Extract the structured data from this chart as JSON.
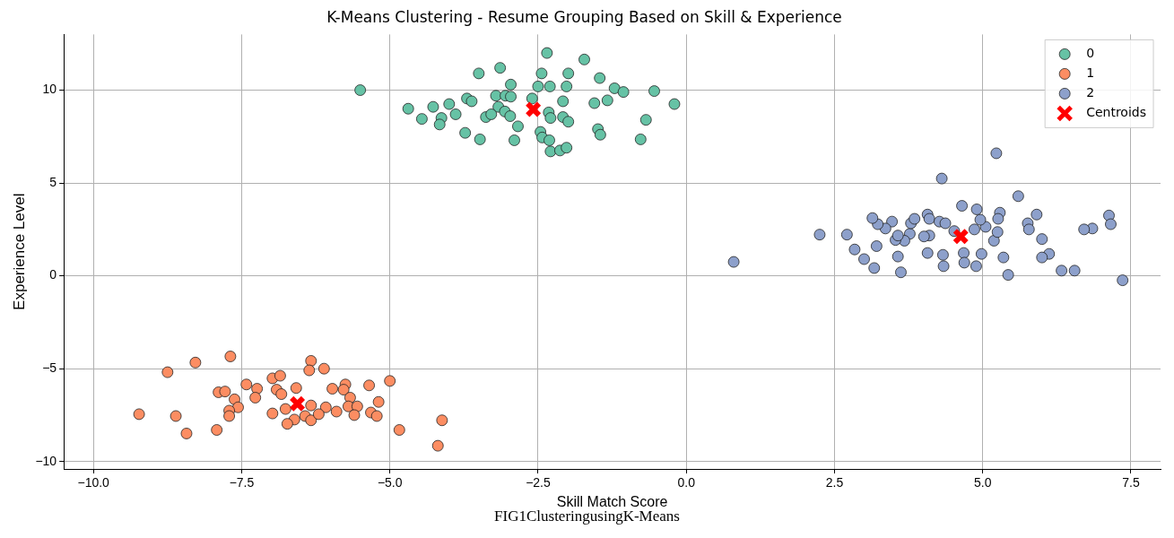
{
  "chart_data": {
    "type": "scatter",
    "title": "K-Means Clustering - Resume Grouping Based on Skill & Experience",
    "xlabel": "Skill Match Score",
    "ylabel": "Experience Level",
    "annotations": [
      "FIG1ClusteringusingK-Means"
    ],
    "xlim": [
      -10.5,
      8.0
    ],
    "ylim": [
      -10.4,
      13.0
    ],
    "xticks": [
      {
        "value": -10,
        "label": "−10.0"
      },
      {
        "value": -7.5,
        "label": "−7.5"
      },
      {
        "value": -5,
        "label": "−5.0"
      },
      {
        "value": -2.5,
        "label": "−2.5"
      },
      {
        "value": 0,
        "label": "0.0"
      },
      {
        "value": 2.5,
        "label": "2.5"
      },
      {
        "value": 5,
        "label": "5.0"
      },
      {
        "value": 7.5,
        "label": "7.5"
      }
    ],
    "yticks": [
      {
        "value": -10,
        "label": "−10"
      },
      {
        "value": -5,
        "label": "−5"
      },
      0,
      5,
      10
    ],
    "grid": true,
    "legend": "top right",
    "marker": "circle",
    "series": [
      {
        "name": "0",
        "color": "#66c2a5",
        "x": [
          -5.5,
          -2.35,
          -1.72,
          -3.14,
          -3.5,
          -2.44,
          -1.99,
          -1.46,
          -2.96,
          -2.5,
          -2.3,
          -2.02,
          -1.21,
          -1.06,
          -0.54,
          -0.2,
          -4.69,
          -4.27,
          -4.0,
          -3.7,
          -3.62,
          -3.21,
          -3.05,
          -2.96,
          -2.6,
          -2.08,
          -1.55,
          -1.33,
          -4.46,
          -4.13,
          -3.89,
          -3.17,
          -3.06,
          -3.38,
          -3.29,
          -2.97,
          -2.32,
          -2.29,
          -2.08,
          -1.99,
          -4.16,
          -3.73,
          -3.48,
          -2.9,
          -2.84,
          -2.46,
          -2.43,
          -2.31,
          -1.49,
          -1.45,
          -0.68,
          -0.77,
          -2.29,
          -2.13,
          -2.02
        ],
        "values": [
          10.0,
          12.0,
          11.65,
          11.2,
          10.9,
          10.9,
          10.9,
          10.65,
          10.3,
          10.2,
          10.2,
          10.2,
          10.1,
          9.9,
          9.95,
          9.25,
          9.0,
          9.1,
          9.25,
          9.55,
          9.4,
          9.7,
          9.7,
          9.65,
          9.55,
          9.4,
          9.3,
          9.45,
          8.45,
          8.5,
          8.7,
          9.1,
          8.85,
          8.55,
          8.7,
          8.6,
          8.8,
          8.5,
          8.55,
          8.3,
          8.15,
          7.7,
          7.35,
          7.3,
          8.05,
          7.75,
          7.45,
          7.3,
          7.9,
          7.6,
          8.4,
          7.35,
          6.7,
          6.75,
          6.9
        ]
      },
      {
        "name": "1",
        "color": "#fc8d62",
        "x": [
          -7.69,
          -8.28,
          -8.75,
          -6.33,
          -6.11,
          -6.36,
          -6.98,
          -6.85,
          -7.42,
          -7.24,
          -7.89,
          -7.78,
          -7.62,
          -7.27,
          -6.91,
          -6.58,
          -6.83,
          -5.97,
          -5.75,
          -5.78,
          -5.35,
          -5.0,
          -5.67,
          -5.19,
          -7.56,
          -7.71,
          -7.71,
          -9.23,
          -8.61,
          -8.43,
          -7.92,
          -6.98,
          -6.76,
          -6.33,
          -6.08,
          -5.9,
          -5.7,
          -5.55,
          -5.6,
          -5.32,
          -5.22,
          -6.61,
          -6.73,
          -6.43,
          -6.33,
          -6.2,
          -4.84,
          -4.12,
          -4.19
        ],
        "values": [
          -4.34,
          -4.67,
          -5.19,
          -4.58,
          -5.0,
          -5.09,
          -5.52,
          -5.38,
          -5.85,
          -6.08,
          -6.27,
          -6.23,
          -6.65,
          -6.56,
          -6.13,
          -6.04,
          -6.37,
          -6.08,
          -5.85,
          -6.13,
          -5.9,
          -5.66,
          -6.56,
          -6.79,
          -7.08,
          -7.26,
          -7.55,
          -7.45,
          -7.55,
          -8.49,
          -8.3,
          -7.41,
          -7.17,
          -6.98,
          -7.08,
          -7.31,
          -7.03,
          -7.03,
          -7.5,
          -7.36,
          -7.55,
          -7.74,
          -7.97,
          -7.55,
          -7.78,
          -7.45,
          -8.3,
          -7.78,
          -9.15
        ]
      },
      {
        "name": "2",
        "color": "#8da0cb",
        "x": [
          5.23,
          4.31,
          5.6,
          4.65,
          4.9,
          5.29,
          5.91,
          7.13,
          7.16,
          6.85,
          6.71,
          5.76,
          5.78,
          6.0,
          6.12,
          6.0,
          6.33,
          6.55,
          7.36,
          5.43,
          5.35,
          5.19,
          5.25,
          5.26,
          5.05,
          4.96,
          4.86,
          4.98,
          4.68,
          4.69,
          4.89,
          4.33,
          4.34,
          4.07,
          4.1,
          4.01,
          3.57,
          3.62,
          3.77,
          3.68,
          3.53,
          3.57,
          3.79,
          3.85,
          4.07,
          4.1,
          4.27,
          4.37,
          3.47,
          3.36,
          3.23,
          3.14,
          3.21,
          2.84,
          3.0,
          3.17,
          2.71,
          2.25,
          0.8,
          4.52
        ],
        "values": [
          6.6,
          5.24,
          4.29,
          3.77,
          3.58,
          3.4,
          3.3,
          3.25,
          2.78,
          2.55,
          2.5,
          2.83,
          2.5,
          1.98,
          1.18,
          0.99,
          0.28,
          0.28,
          -0.24,
          0.05,
          0.99,
          1.89,
          2.36,
          3.07,
          2.64,
          3.02,
          2.5,
          1.18,
          1.23,
          0.71,
          0.52,
          1.13,
          0.52,
          1.23,
          2.17,
          2.12,
          1.04,
          0.19,
          2.26,
          1.89,
          1.93,
          2.17,
          2.83,
          3.07,
          3.3,
          3.07,
          2.92,
          2.83,
          2.92,
          2.55,
          2.78,
          3.11,
          1.6,
          1.42,
          0.9,
          0.42,
          2.22,
          2.22,
          0.75,
          2.41
        ]
      },
      {
        "name": "Centroids",
        "color": "#ff0000",
        "marker": "cross",
        "x": [
          -2.58,
          -6.56,
          4.63
        ],
        "values": [
          8.96,
          -6.89,
          2.12
        ]
      }
    ]
  }
}
